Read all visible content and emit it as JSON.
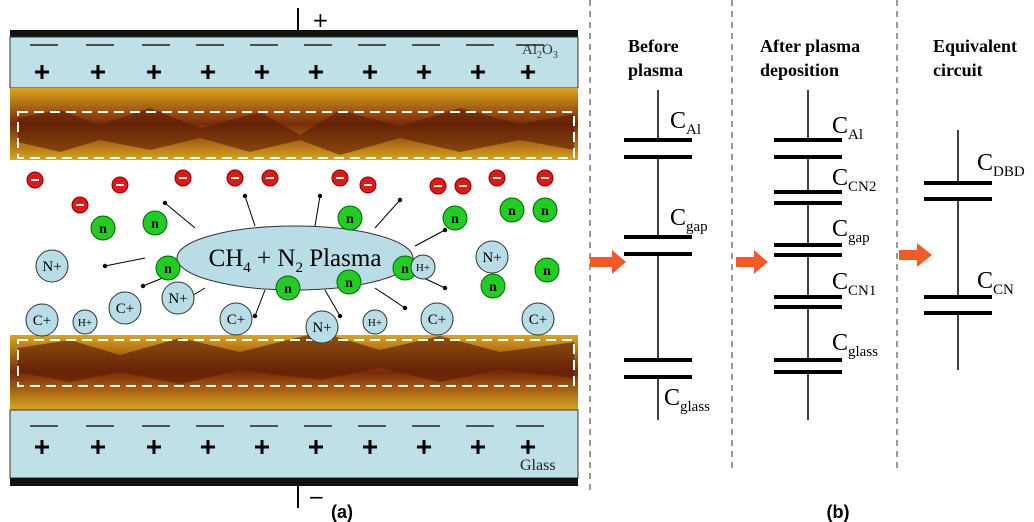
{
  "panel_a": {
    "top_terminal": "+",
    "bottom_terminal": "−",
    "top_dielectric": {
      "a": "Al",
      "a_sub": "2",
      "b": "O",
      "b_sub": "3"
    },
    "bottom_dielectric": "Glass",
    "plasma": {
      "a": "CH",
      "a_sub": "4",
      "b": " + N",
      "b_sub": "2",
      "c": " Plasma"
    },
    "ions": [
      "N+",
      "C+",
      "H+",
      "C+",
      "N+",
      "C+",
      "N+",
      "H+",
      "C+",
      "C+",
      "N+",
      "H+"
    ],
    "neutrals": [
      "n",
      "n",
      "n",
      "n",
      "n",
      "n",
      "n",
      "n",
      "n",
      "n",
      "n",
      "n"
    ],
    "caption": "(a)"
  },
  "panel_b": {
    "caption": "(b)",
    "columns": [
      {
        "heading": [
          "Before",
          "plasma"
        ],
        "capacitors": [
          {
            "main": "C",
            "sub": "Al"
          },
          {
            "main": "C",
            "sub": "gap"
          },
          {
            "main": "C",
            "sub": "glass"
          }
        ]
      },
      {
        "heading": [
          "After plasma",
          "deposition"
        ],
        "capacitors": [
          {
            "main": "C",
            "sub": "Al"
          },
          {
            "main": "C",
            "sub": "CN2"
          },
          {
            "main": "C",
            "sub": "gap"
          },
          {
            "main": "C",
            "sub": "CN1"
          },
          {
            "main": "C",
            "sub": "glass"
          }
        ]
      },
      {
        "heading": [
          "Equivalent",
          "circuit"
        ],
        "capacitors": [
          {
            "main": "C",
            "sub": "DBD"
          },
          {
            "main": "C",
            "sub": "CN"
          }
        ]
      }
    ]
  }
}
